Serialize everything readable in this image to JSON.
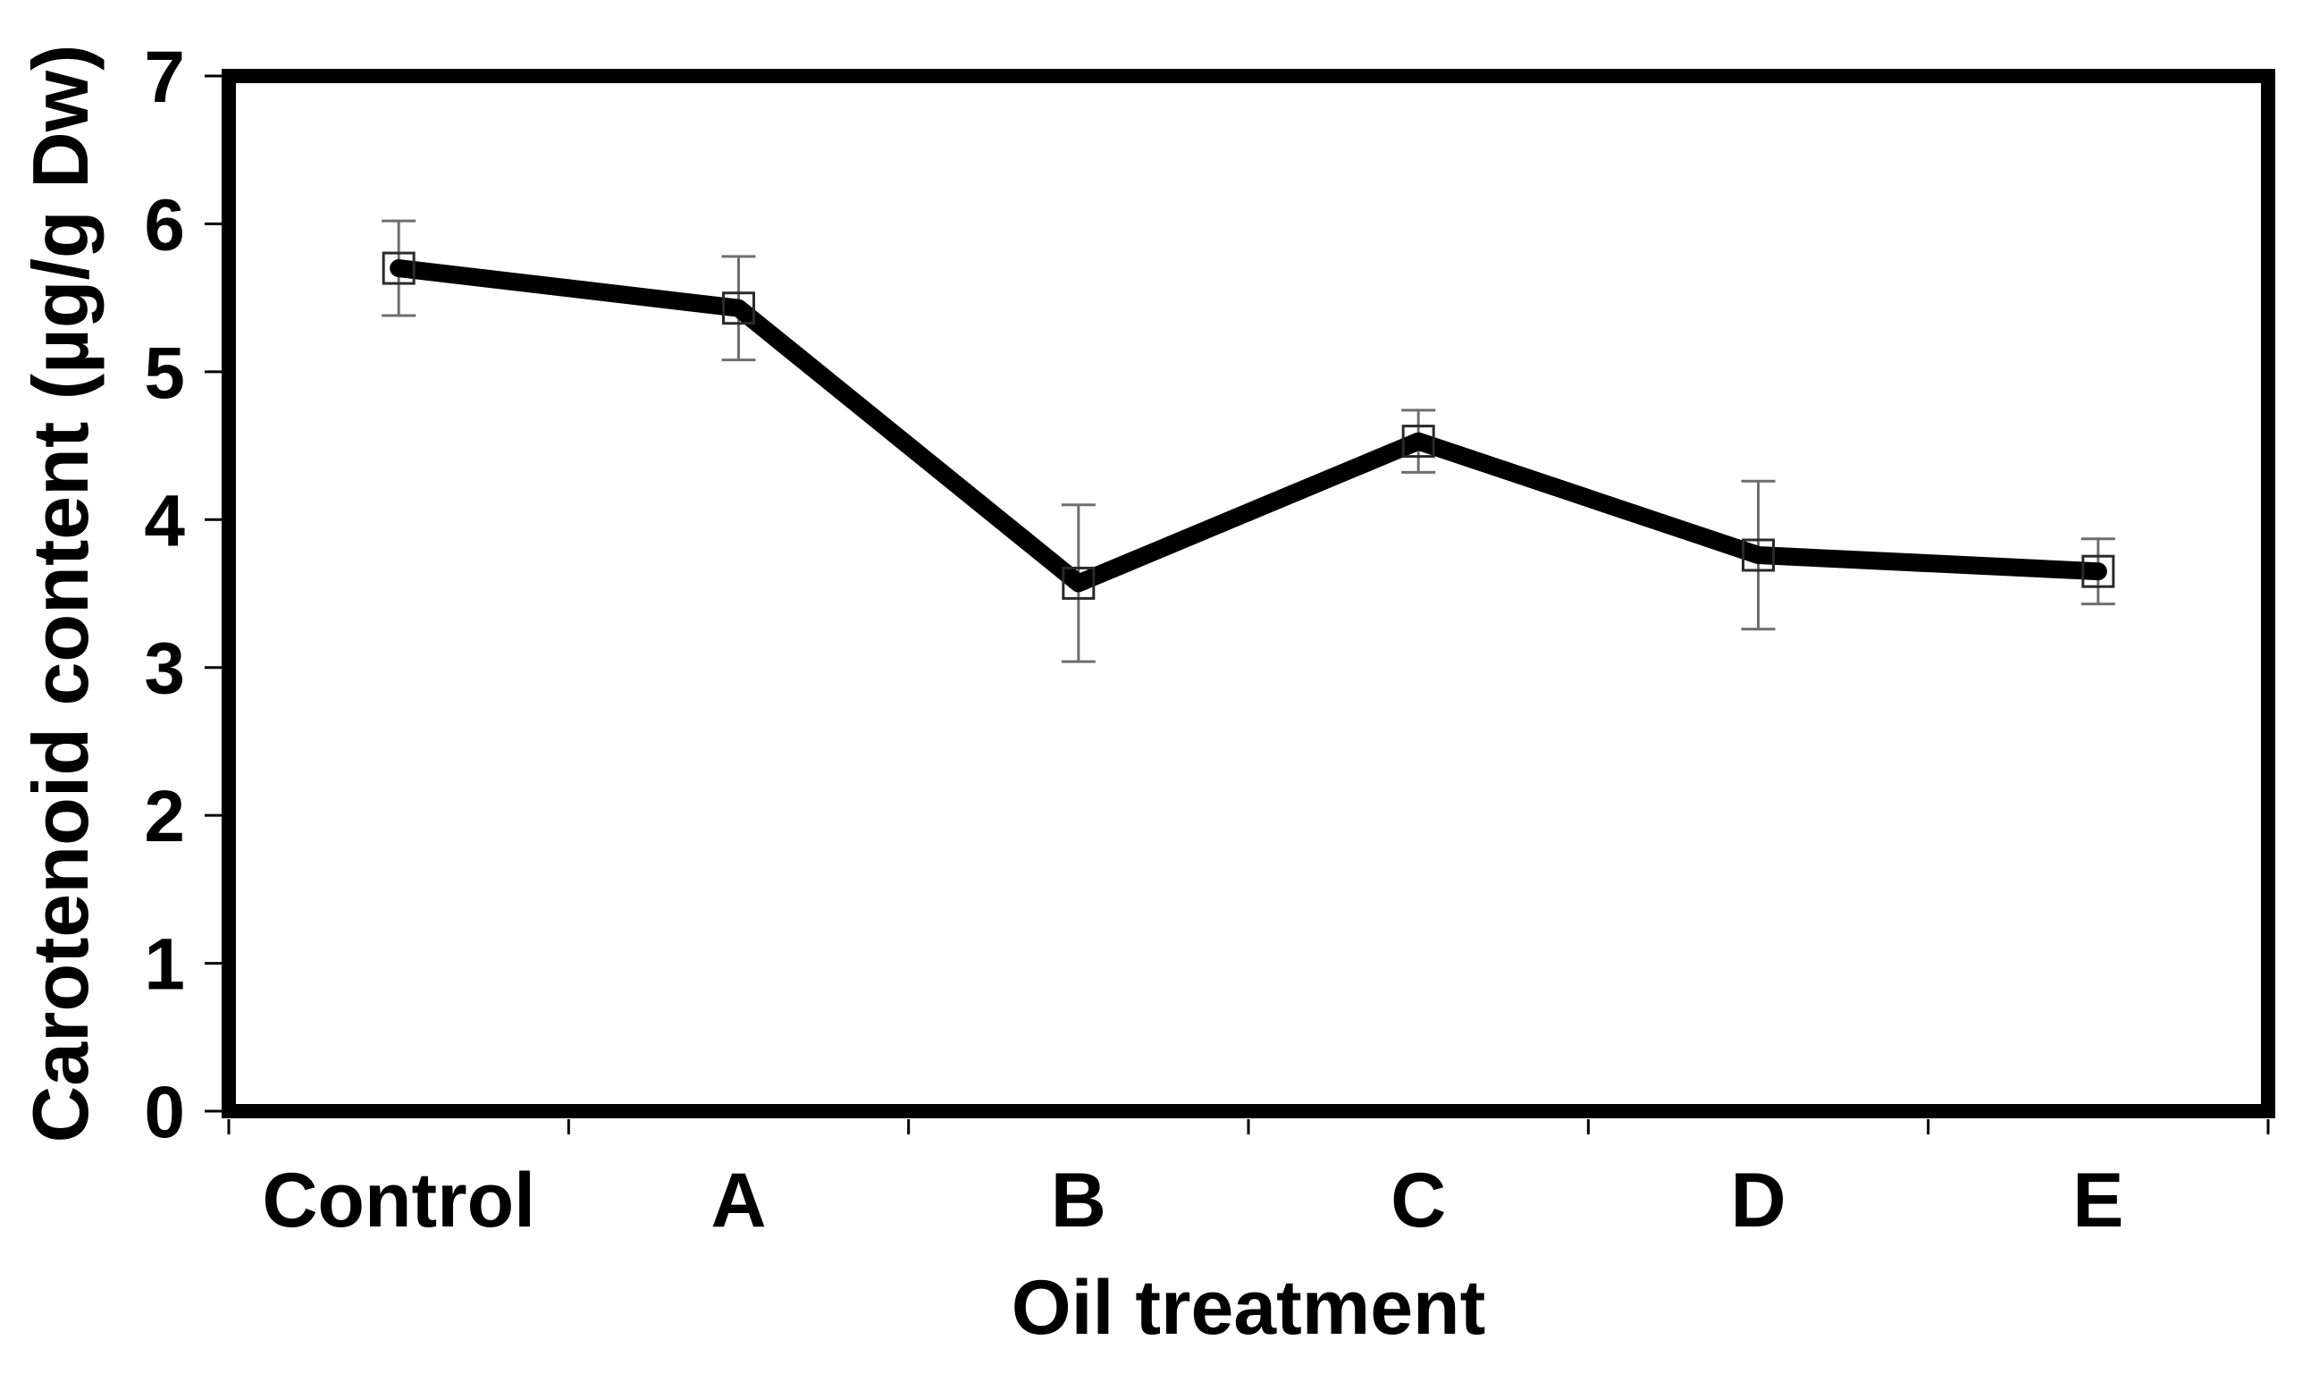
{
  "figure": {
    "background_color": "#ffffff",
    "line_color": "#000000",
    "error_bar_color": "#6e6e6e",
    "marker_stroke_color": "#2a2a2a",
    "axis_color": "#000000"
  },
  "chart_data": {
    "type": "line",
    "title": "",
    "xlabel": "Oil treatment",
    "ylabel": "Carotenoid content (µg/g Dw)",
    "categories": [
      "Control",
      "A",
      "B",
      "C",
      "D",
      "E"
    ],
    "series": [
      {
        "name": "Carotenoid content",
        "values": [
          5.7,
          5.43,
          3.57,
          4.53,
          3.76,
          3.65
        ],
        "errors": [
          0.32,
          0.35,
          0.53,
          0.21,
          0.5,
          0.22
        ]
      }
    ],
    "ylim": [
      0,
      7
    ],
    "yticks": [
      0,
      1,
      2,
      3,
      4,
      5,
      6,
      7
    ],
    "xlim_categories": 6,
    "grid": false,
    "legend_position": "none",
    "marker": "open-square",
    "error_bars": true
  }
}
